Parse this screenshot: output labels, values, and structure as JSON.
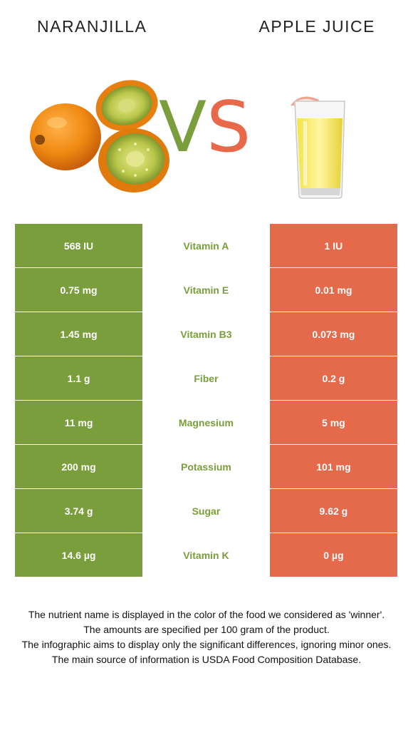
{
  "header": {
    "left_food": "NARANJILLA",
    "vs_v": "V",
    "vs_s": "S",
    "right_food": "APPLE JUICE"
  },
  "images": {
    "left": "naranjilla-fruit-photo",
    "right": "apple-juice-glass-photo"
  },
  "colors": {
    "left_food": "#7a9e3b",
    "right_food": "#e5694b"
  },
  "rows": [
    {
      "left": "568 IU",
      "nutrient": "Vitamin A",
      "right": "1 IU",
      "winner": "left"
    },
    {
      "left": "0.75 mg",
      "nutrient": "Vitamin E",
      "right": "0.01 mg",
      "winner": "left"
    },
    {
      "left": "1.45 mg",
      "nutrient": "Vitamin B3",
      "right": "0.073 mg",
      "winner": "left"
    },
    {
      "left": "1.1 g",
      "nutrient": "Fiber",
      "right": "0.2 g",
      "winner": "left"
    },
    {
      "left": "11 mg",
      "nutrient": "Magnesium",
      "right": "5 mg",
      "winner": "left"
    },
    {
      "left": "200 mg",
      "nutrient": "Potassium",
      "right": "101 mg",
      "winner": "left"
    },
    {
      "left": "3.74 g",
      "nutrient": "Sugar",
      "right": "9.62 g",
      "winner": "left"
    },
    {
      "left": "14.6 µg",
      "nutrient": "Vitamin K",
      "right": "0 µg",
      "winner": "left"
    }
  ],
  "footer": [
    "The nutrient name is displayed in the color of the food we considered as 'winner'.",
    "The amounts are specified per 100 gram of the product.",
    "The infographic aims to display only the significant differences, ignoring minor ones.",
    "The main source of information is USDA Food Composition Database."
  ]
}
